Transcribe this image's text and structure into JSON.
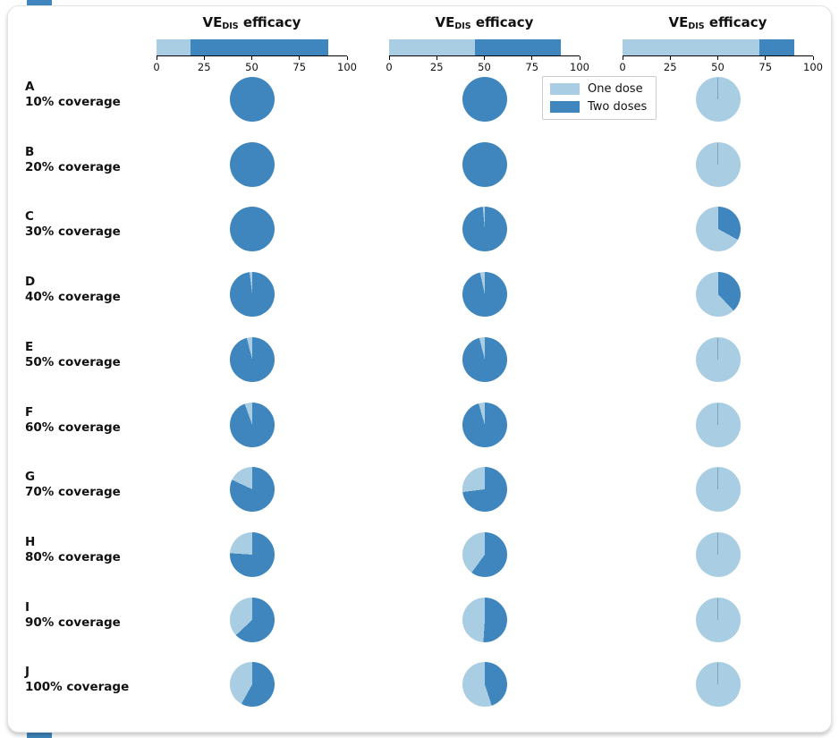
{
  "figure": {
    "background": "#ffffff",
    "accent_color": "#3e86bd",
    "card_border_color": "#e3e3e3"
  },
  "colors": {
    "one_dose": "#a9cee4",
    "two_doses": "#3e86bd"
  },
  "chart_data": {
    "type": "pie",
    "description": "Grid of 10 rows (vaccination coverage A 10% to J 100%) by 3 panels (VE_DIS efficacy scenarios). Each pie shows share for One dose (light blue) vs Two doses (dark blue); slices start at 12 o'clock, one-dose slice sweeps counterclockwise. Each panel header shows a stacked horizontal bar of one-dose VE and two-dose VE on a 0-100 axis.",
    "legend": [
      "One dose",
      "Two doses"
    ],
    "legend_position": "top, between panel 2 and panel 3",
    "panel_title": {
      "pre": "VE",
      "sub": "DIS",
      "post": " efficacy"
    },
    "axis": {
      "range": [
        0,
        100
      ],
      "ticks": [
        0,
        25,
        50,
        75,
        100
      ]
    },
    "panels": [
      {
        "one_dose_ve": 18,
        "two_dose_ve": 90
      },
      {
        "one_dose_ve": 45,
        "two_dose_ve": 90
      },
      {
        "one_dose_ve": 72,
        "two_dose_ve": 90
      }
    ],
    "rows": [
      {
        "letter": "A",
        "coverage": "10% coverage",
        "one_dose_share": [
          0,
          0,
          1
        ]
      },
      {
        "letter": "B",
        "coverage": "20% coverage",
        "one_dose_share": [
          0,
          0,
          1
        ]
      },
      {
        "letter": "C",
        "coverage": "30% coverage",
        "one_dose_share": [
          0,
          0.015,
          0.67
        ]
      },
      {
        "letter": "D",
        "coverage": "40% coverage",
        "one_dose_share": [
          0.02,
          0.035,
          0.62
        ]
      },
      {
        "letter": "E",
        "coverage": "50% coverage",
        "one_dose_share": [
          0.04,
          0.04,
          1
        ]
      },
      {
        "letter": "F",
        "coverage": "60% coverage",
        "one_dose_share": [
          0.055,
          0.045,
          1
        ]
      },
      {
        "letter": "G",
        "coverage": "70% coverage",
        "one_dose_share": [
          0.18,
          0.27,
          1
        ]
      },
      {
        "letter": "H",
        "coverage": "80% coverage",
        "one_dose_share": [
          0.24,
          0.4,
          1
        ]
      },
      {
        "letter": "I",
        "coverage": "90% coverage",
        "one_dose_share": [
          0.37,
          0.49,
          1
        ]
      },
      {
        "letter": "J",
        "coverage": "100% coverage",
        "one_dose_share": [
          0.42,
          0.55,
          1
        ]
      }
    ]
  }
}
